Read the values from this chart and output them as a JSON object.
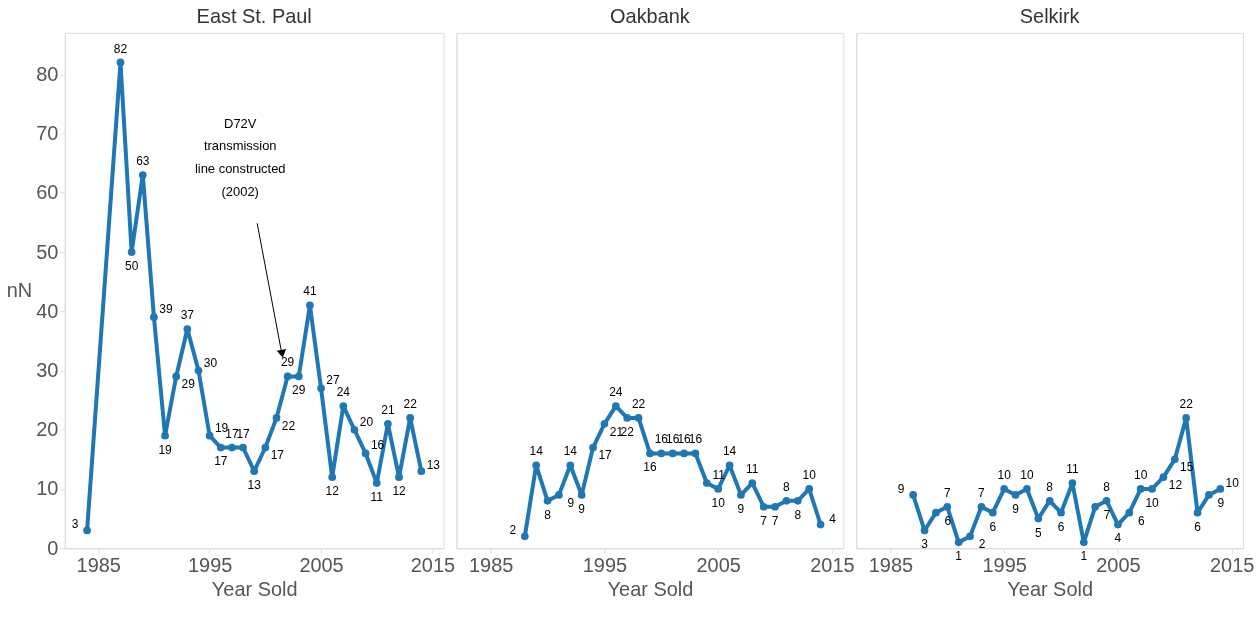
{
  "chart_data": [
    {
      "type": "line",
      "title": "East St. Paul",
      "xlabel": "Year Sold",
      "ylabel": "nN",
      "x": [
        1984,
        1987,
        1988,
        1989,
        1990,
        1991,
        1992,
        1993,
        1994,
        1995,
        1996,
        1997,
        1998,
        1999,
        2000,
        2001,
        2002,
        2003,
        2004,
        2005,
        2006,
        2007,
        2008,
        2009,
        2010,
        2011,
        2012,
        2013,
        2014
      ],
      "series": [
        {
          "color": "#1f77b4",
          "values": [
            3,
            82,
            50,
            63,
            39,
            19,
            29,
            37,
            30,
            19,
            17,
            17,
            17,
            13,
            17,
            22,
            29,
            29,
            41,
            27,
            12,
            24,
            20,
            16,
            11,
            21,
            12,
            22,
            13
          ]
        }
      ],
      "xlim": [
        1982,
        2016
      ],
      "xticks": [
        1985,
        1995,
        2005,
        2015
      ],
      "ylim": [
        0,
        87
      ],
      "yticks": [
        0,
        10,
        20,
        30,
        40,
        50,
        60,
        70,
        80
      ],
      "annotations": [
        "D72V\ntransmission\nline constructed\n(2002)"
      ],
      "data_labels": true,
      "marker": "circle",
      "grid": false
    },
    {
      "type": "line",
      "title": "Oakbank",
      "xlabel": "Year Sold",
      "x": [
        1988,
        1989,
        1990,
        1991,
        1992,
        1993,
        1994,
        1995,
        1996,
        1997,
        1998,
        1999,
        2000,
        2001,
        2002,
        2003,
        2004,
        2005,
        2006,
        2007,
        2008,
        2009,
        2010,
        2011,
        2012,
        2013,
        2014
      ],
      "series": [
        {
          "color": "#1f77b4",
          "values": [
            2,
            14,
            8,
            9,
            14,
            9,
            17,
            21,
            24,
            22,
            22,
            16,
            16,
            16,
            16,
            16,
            11,
            10,
            14,
            9,
            11,
            7,
            7,
            8,
            8,
            10,
            4
          ]
        }
      ],
      "xlim": [
        1982,
        2016
      ],
      "xticks": [
        1985,
        1995,
        2005,
        2015
      ],
      "ylim": [
        0,
        87
      ],
      "yticks": [
        0,
        10,
        20,
        30,
        40,
        50,
        60,
        70,
        80
      ],
      "tick_labels": "x",
      "data_labels": true,
      "marker": "circle",
      "grid": false
    },
    {
      "type": "line",
      "title": "Selkirk",
      "xlabel": "Year Sold",
      "x": [
        1987,
        1988,
        1989,
        1990,
        1991,
        1992,
        1993,
        1994,
        1995,
        1996,
        1997,
        1998,
        1999,
        2000,
        2001,
        2002,
        2003,
        2004,
        2005,
        2006,
        2007,
        2008,
        2009,
        2010,
        2011,
        2012,
        2013,
        2014
      ],
      "series": [
        {
          "color": "#1f77b4",
          "values": [
            9,
            3,
            6,
            7,
            1,
            2,
            7,
            6,
            10,
            9,
            10,
            5,
            8,
            6,
            11,
            1,
            7,
            8,
            4,
            6,
            10,
            10,
            12,
            15,
            22,
            6,
            9,
            10
          ]
        }
      ],
      "xlim": [
        1982,
        2016
      ],
      "xticks": [
        1985,
        1995,
        2005,
        2015
      ],
      "ylim": [
        0,
        87
      ],
      "yticks": [
        0,
        10,
        20,
        30,
        40,
        50,
        60,
        70,
        80
      ],
      "tick_labels": "x",
      "data_labels": true,
      "marker": "circle",
      "grid": false
    }
  ]
}
